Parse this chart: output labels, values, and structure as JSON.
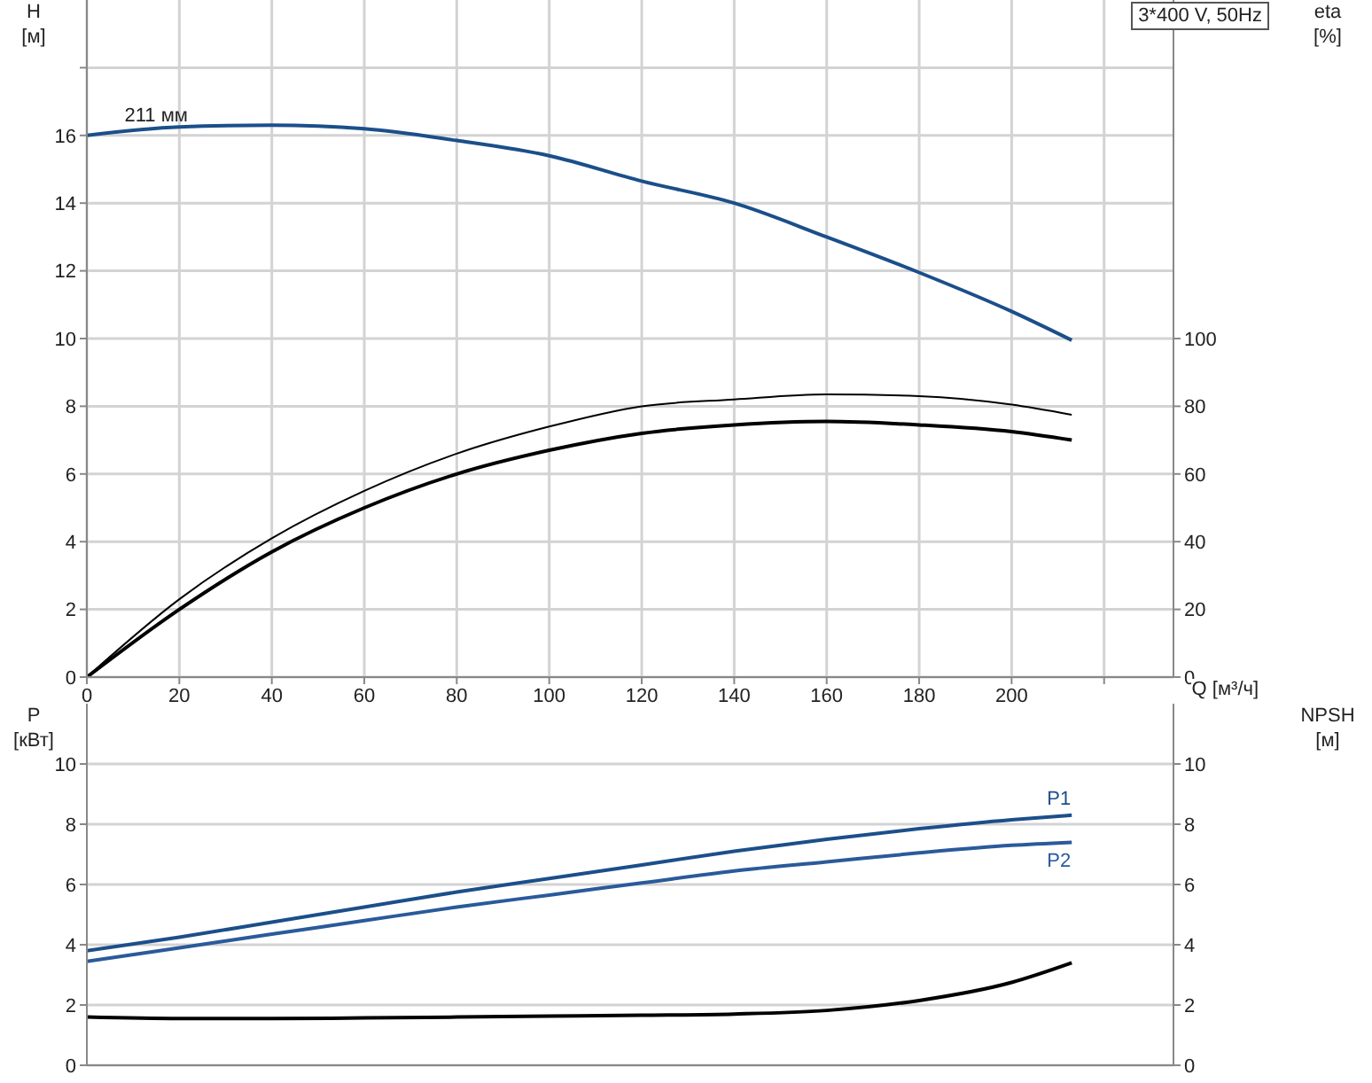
{
  "chart_data": [
    {
      "type": "line",
      "title": "3*400 V, 50Hz",
      "xlabel": "Q [м³/ч]",
      "ylabel": "H [м]",
      "y2label": "eta [%]",
      "x": [
        0,
        20,
        40,
        60,
        80,
        100,
        120,
        140,
        160,
        180,
        200,
        213
      ],
      "xlim": [
        0,
        235
      ],
      "xticks": [
        0,
        20,
        40,
        60,
        80,
        100,
        120,
        140,
        160,
        180,
        200,
        {
          "value": 220,
          "label": null
        }
      ],
      "ylim": [
        0,
        20
      ],
      "yticks": [
        0,
        2,
        4,
        6,
        8,
        10,
        12,
        14,
        16,
        {
          "value": 18,
          "label": null
        }
      ],
      "y2lim": [
        0,
        200
      ],
      "y2ticks": [
        0,
        20,
        40,
        60,
        80,
        100
      ],
      "grid": true,
      "legend": false,
      "marker": "none",
      "annotations": [
        {
          "text": "211 мм",
          "x": 15,
          "y": 16.2
        }
      ],
      "series": [
        {
          "color": "#1b4f8a",
          "values": [
            16.0,
            16.25,
            16.3,
            16.2,
            15.85,
            15.4,
            14.65,
            14.0,
            13.0,
            11.95,
            10.8,
            9.95
          ]
        },
        {
          "color": "#000000",
          "axis": "y2",
          "values": [
            0,
            23,
            41,
            55,
            66,
            74,
            80,
            82,
            83.5,
            83,
            80.5,
            77.5
          ]
        },
        {
          "color": "#000000",
          "axis": "y2",
          "values": [
            0,
            20,
            37,
            50,
            60,
            67,
            72,
            74.5,
            75.5,
            74.5,
            72.5,
            70
          ]
        }
      ]
    },
    {
      "type": "line",
      "ylabel": "P [кВт]",
      "y2label": "NPSH [м]",
      "x": [
        0,
        20,
        40,
        60,
        80,
        100,
        120,
        140,
        160,
        180,
        200,
        213
      ],
      "xlim": [
        0,
        235
      ],
      "xticks": [
        0,
        20,
        40,
        60,
        80,
        100,
        120,
        140,
        160,
        180,
        200,
        220
      ],
      "ylim": [
        0,
        12
      ],
      "yticks": [
        0,
        2,
        4,
        6,
        8,
        10
      ],
      "y2lim": [
        0,
        12
      ],
      "y2ticks": [
        0,
        2,
        4,
        6,
        8,
        10
      ],
      "tick_labels": "y",
      "grid": true,
      "legend": false,
      "marker": "none",
      "series": [
        {
          "name": "P1",
          "color": "#1b4f8a",
          "values": [
            3.8,
            4.25,
            4.75,
            5.25,
            5.75,
            6.2,
            6.65,
            7.1,
            7.5,
            7.85,
            8.15,
            8.3
          ]
        },
        {
          "name": "P2",
          "color": "#2a5a9a",
          "values": [
            3.45,
            3.9,
            4.35,
            4.8,
            5.25,
            5.65,
            6.05,
            6.45,
            6.75,
            7.05,
            7.3,
            7.4
          ]
        },
        {
          "color": "#000000",
          "axis": "y2",
          "values": [
            1.6,
            1.55,
            1.55,
            1.57,
            1.6,
            1.63,
            1.66,
            1.7,
            1.82,
            2.15,
            2.75,
            3.4
          ]
        }
      ]
    }
  ]
}
